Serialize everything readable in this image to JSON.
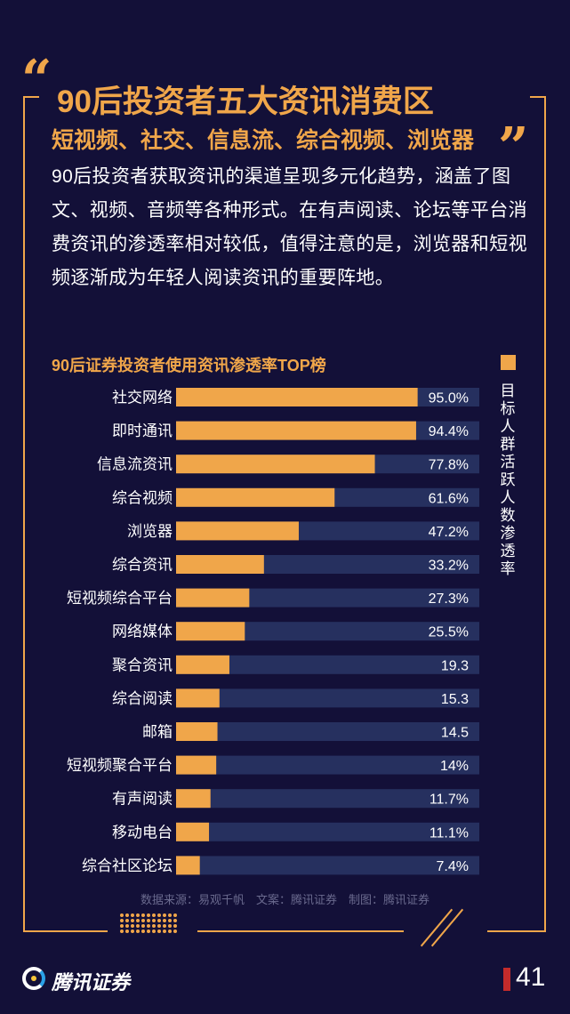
{
  "header": {
    "title": "90后投资者五大资讯消费区",
    "subtitle": "短视频、社交、信息流、综合视频、浏览器",
    "open_quote": "“",
    "close_quote": "”"
  },
  "intro": "90后投资者获取资讯的渠道呈现多元化趋势，涵盖了图文、视频、音频等各种形式。在有声阅读、论坛等平台消费资讯的渗透率相对较低，值得注意的是，浏览器和短视频逐渐成为年轻人阅读资讯的重要阵地。",
  "chart_data": {
    "type": "bar",
    "orientation": "horizontal",
    "title": "90后证券投资者使用资讯渗透率TOP榜",
    "legend": {
      "label": "目标人群活跃人数渗透率",
      "placement": "right"
    },
    "xlim": [
      0,
      100
    ],
    "categories": [
      "社交网络",
      "即时通讯",
      "信息流资讯",
      "综合视频",
      "浏览器",
      "综合资讯",
      "短视频综合平台",
      "网络媒体",
      "聚合资讯",
      "综合阅读",
      "邮箱",
      "短视频聚合平台",
      "有声阅读",
      "移动电台",
      "综合社区论坛"
    ],
    "values": [
      95.0,
      94.4,
      77.8,
      61.6,
      47.2,
      33.2,
      27.3,
      25.5,
      19.3,
      15.3,
      14.5,
      14,
      11.7,
      11.1,
      7.4
    ],
    "value_labels": [
      "95.0%",
      "94.4%",
      "77.8%",
      "61.6%",
      "47.2%",
      "33.2%",
      "27.3%",
      "25.5%",
      "19.3",
      "15.3",
      "14.5",
      "14%",
      "11.7%",
      "11.1%",
      "7.4%"
    ],
    "colors": {
      "bar": "#f0a64a",
      "track": "#26305f"
    }
  },
  "footer": {
    "source": "数据来源：易观千帆　文案：腾讯证券　制图：腾讯证券",
    "brand": "腾讯证券",
    "page_number": "41"
  },
  "colors": {
    "background": "#131038",
    "accent": "#f0a64a",
    "page_mark": "#c42b2b"
  }
}
